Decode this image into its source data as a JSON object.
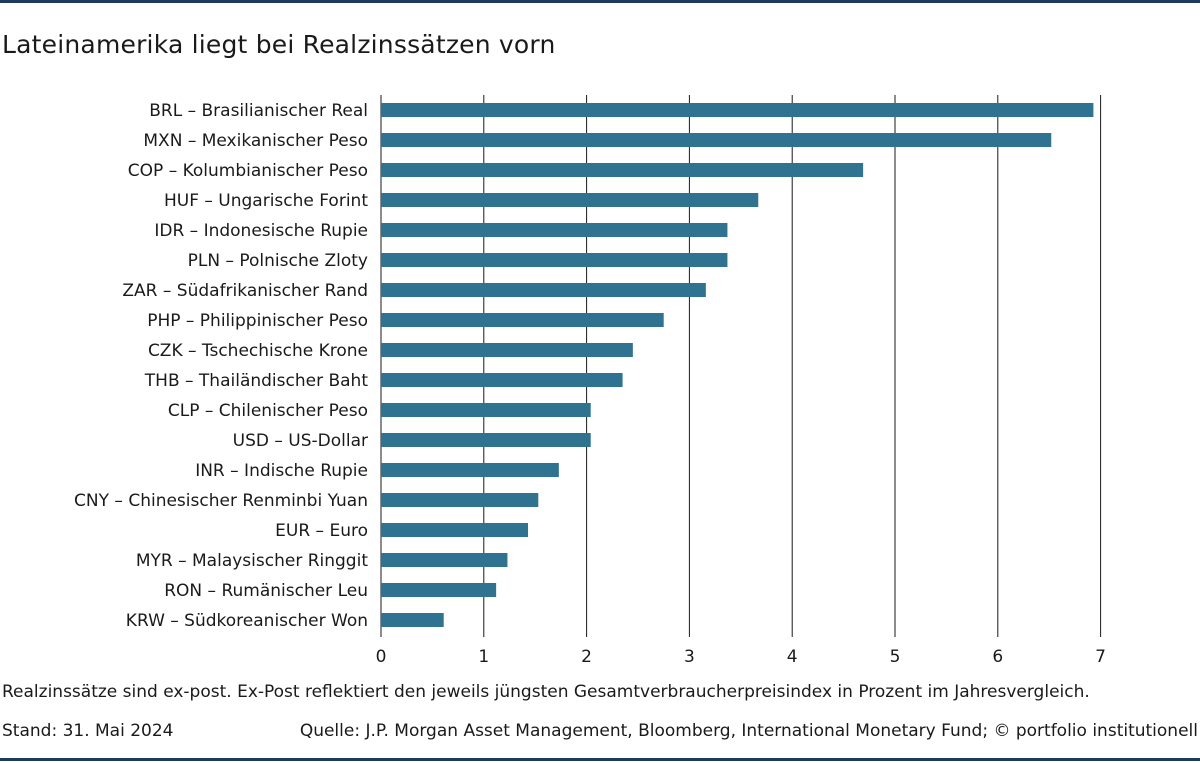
{
  "title": "Lateinamerika liegt bei Realzinssätzen vorn",
  "note": "Realzinssätze sind ex-post. Ex-Post reflektiert den jeweils jüngsten Gesamtverbraucherpreisindex in Prozent im Jahresvergleich.",
  "stand": "Stand: 31. Mai 2024",
  "source": "Quelle: J.P. Morgan Asset Management, Bloomberg, International Monetary Fund; © portfolio institutionell",
  "colors": {
    "bar": "#2f7390",
    "grid": "#1a1a1a",
    "rule": "#1e3a5c"
  },
  "chart_data": {
    "type": "bar",
    "orientation": "horizontal",
    "categories": [
      "BRL – Brasilianischer Real",
      "MXN – Mexikanischer Peso",
      "COP – Kolumbianischer Peso",
      "HUF – Ungarische Forint",
      "IDR – Indonesische Rupie",
      "PLN – Polnische Zloty",
      "ZAR – Südafrikanischer Rand",
      "PHP – Philippinischer Peso",
      "CZK – Tschechische Krone",
      "THB – Thailändischer Baht",
      "CLP – Chilenischer Peso",
      "USD – US-Dollar",
      "INR – Indische Rupie",
      "CNY – Chinesischer Renminbi Yuan",
      "EUR – Euro",
      "MYR – Malaysischer Ringgit",
      "RON – Rumänischer Leu",
      "KRW – Südkoreanischer Won"
    ],
    "values": [
      6.93,
      6.52,
      4.69,
      3.67,
      3.37,
      3.37,
      3.16,
      2.75,
      2.45,
      2.35,
      2.04,
      2.04,
      1.73,
      1.53,
      1.43,
      1.23,
      1.12,
      0.61
    ],
    "xlim": [
      0,
      7
    ],
    "xticks": [
      "0",
      "1",
      "2",
      "3",
      "4",
      "5",
      "6",
      "7"
    ],
    "grid": "vertical"
  }
}
